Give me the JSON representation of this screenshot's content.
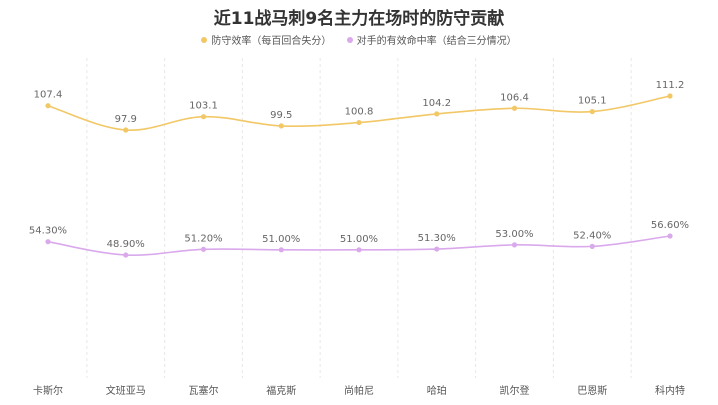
{
  "chart_data": {
    "type": "line",
    "title": "近11战马刺9名主力在场时的防守贡献",
    "categories": [
      "卡斯尔",
      "文班亚马",
      "瓦塞尔",
      "福克斯",
      "尚帕尼",
      "哈珀",
      "凯尔登",
      "巴恩斯",
      "科内特"
    ],
    "series": [
      {
        "name": "防守效率（每百回合失分）",
        "color": "#f2c766",
        "values": [
          107.4,
          97.9,
          103.1,
          99.5,
          100.8,
          104.2,
          106.4,
          105.1,
          111.2
        ],
        "labels": [
          "107.4",
          "97.9",
          "103.1",
          "99.5",
          "100.8",
          "104.2",
          "106.4",
          "105.1",
          "111.2"
        ]
      },
      {
        "name": "对手的有效命中率（结合三分情况）",
        "color": "#d9a9ec",
        "values": [
          54.3,
          48.9,
          51.2,
          51.0,
          51.0,
          51.3,
          53.0,
          52.4,
          56.6
        ],
        "labels": [
          "54.30%",
          "48.90%",
          "51.20%",
          "51.00%",
          "51.00%",
          "51.30%",
          "53.00%",
          "52.40%",
          "56.60%"
        ]
      }
    ],
    "legend_position": "top-center",
    "grid": "vertical-dashed"
  }
}
